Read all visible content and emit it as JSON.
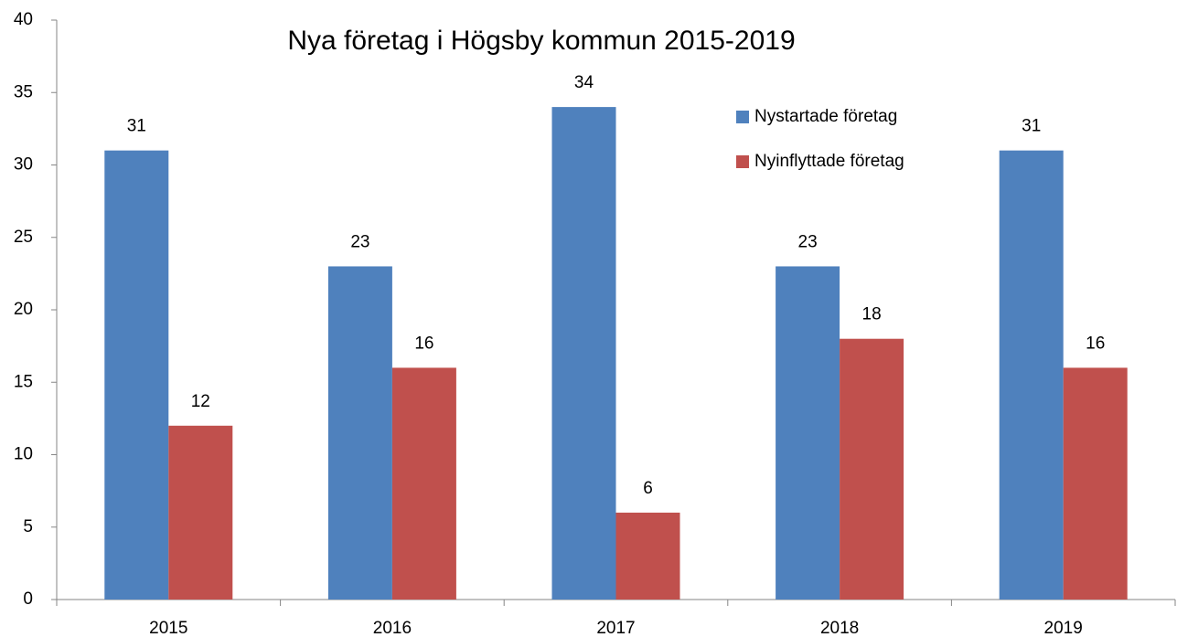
{
  "chart_data": {
    "type": "bar",
    "title": "Nya företag i Högsby kommun 2015-2019",
    "categories": [
      "2015",
      "2016",
      "2017",
      "2018",
      "2019"
    ],
    "series": [
      {
        "name": "Nystartade företag",
        "color": "#4f81bd",
        "values": [
          31,
          23,
          34,
          23,
          31
        ]
      },
      {
        "name": "Nyinflyttade företag",
        "color": "#c0504d",
        "values": [
          12,
          16,
          6,
          18,
          16
        ]
      }
    ],
    "ylim": [
      0,
      40
    ],
    "yticks": [
      0,
      5,
      10,
      15,
      20,
      25,
      30,
      35,
      40
    ],
    "grid": false,
    "legend": "top-right",
    "data_labels": true
  }
}
